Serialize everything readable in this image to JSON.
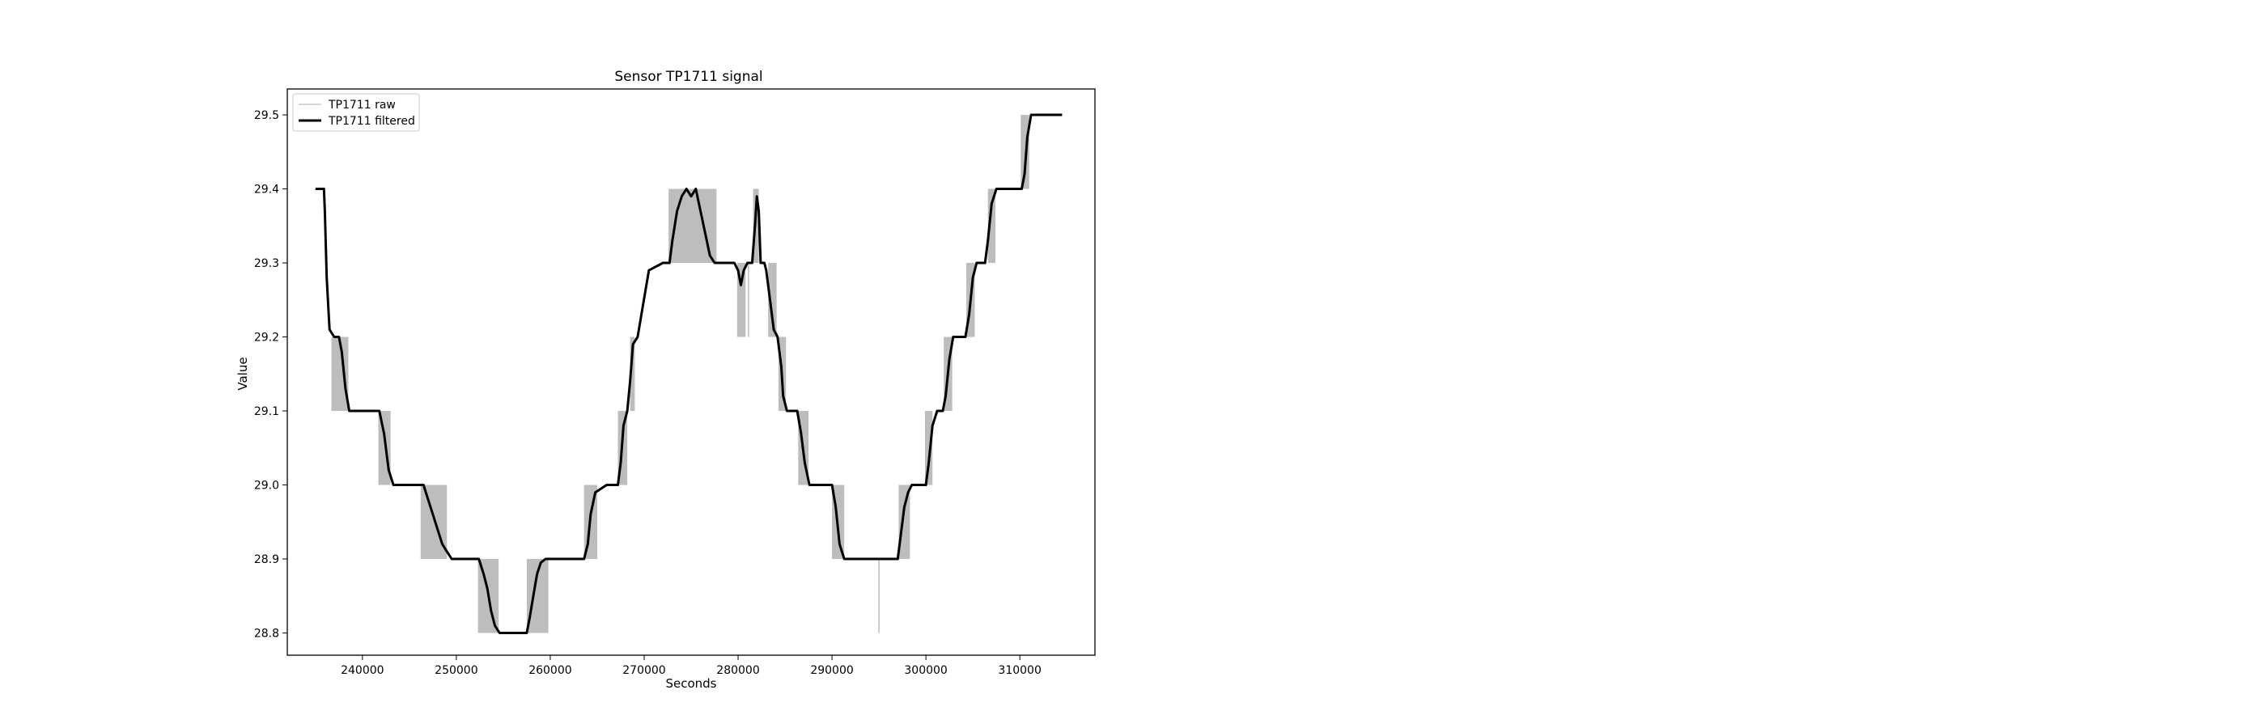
{
  "chart_data": {
    "type": "line",
    "title": "Sensor TP1711 signal",
    "xlabel": "Seconds",
    "ylabel": "Value",
    "xlim": [
      232000,
      318000
    ],
    "ylim": [
      28.77,
      29.535
    ],
    "xticks": [
      240000,
      250000,
      260000,
      270000,
      280000,
      290000,
      300000,
      310000
    ],
    "xtick_labels": [
      "240000",
      "250000",
      "260000",
      "270000",
      "280000",
      "290000",
      "300000",
      "310000"
    ],
    "yticks": [
      28.8,
      28.9,
      29.0,
      29.1,
      29.2,
      29.3,
      29.4,
      29.5
    ],
    "ytick_labels": [
      "28.8",
      "28.9",
      "29.0",
      "29.1",
      "29.2",
      "29.3",
      "29.4",
      "29.5"
    ],
    "grid": false,
    "legend_position": "top-left",
    "series": [
      {
        "name": "TP1711 raw",
        "color": "#bdbdbd",
        "style": "thin",
        "bands": [
          {
            "x0": 236700,
            "x1": 238500,
            "lo": 29.1,
            "hi": 29.2
          },
          {
            "x0": 241700,
            "x1": 243000,
            "lo": 29.0,
            "hi": 29.1
          },
          {
            "x0": 246200,
            "x1": 249000,
            "lo": 28.9,
            "hi": 29.0
          },
          {
            "x0": 252300,
            "x1": 254500,
            "lo": 28.8,
            "hi": 28.9
          },
          {
            "x0": 257500,
            "x1": 259800,
            "lo": 28.8,
            "hi": 28.9
          },
          {
            "x0": 263600,
            "x1": 265000,
            "lo": 28.9,
            "hi": 29.0
          },
          {
            "x0": 267200,
            "x1": 268200,
            "lo": 29.0,
            "hi": 29.1
          },
          {
            "x0": 268500,
            "x1": 269000,
            "lo": 29.1,
            "hi": 29.2
          },
          {
            "x0": 272600,
            "x1": 277700,
            "lo": 29.3,
            "hi": 29.4
          },
          {
            "x0": 279900,
            "x1": 280800,
            "lo": 29.2,
            "hi": 29.3
          },
          {
            "x0": 281600,
            "x1": 282200,
            "lo": 29.3,
            "hi": 29.4
          },
          {
            "x0": 283200,
            "x1": 284100,
            "lo": 29.2,
            "hi": 29.3
          },
          {
            "x0": 284300,
            "x1": 285100,
            "lo": 29.1,
            "hi": 29.2
          },
          {
            "x0": 286400,
            "x1": 287500,
            "lo": 29.0,
            "hi": 29.1
          },
          {
            "x0": 290000,
            "x1": 291300,
            "lo": 28.9,
            "hi": 29.0
          },
          {
            "x0": 297100,
            "x1": 298300,
            "lo": 28.9,
            "hi": 29.0
          },
          {
            "x0": 299900,
            "x1": 300700,
            "lo": 29.0,
            "hi": 29.1
          },
          {
            "x0": 301900,
            "x1": 302800,
            "lo": 29.1,
            "hi": 29.2
          },
          {
            "x0": 304300,
            "x1": 305200,
            "lo": 29.2,
            "hi": 29.3
          },
          {
            "x0": 306600,
            "x1": 307400,
            "lo": 29.3,
            "hi": 29.4
          },
          {
            "x0": 310100,
            "x1": 311000,
            "lo": 29.4,
            "hi": 29.5
          }
        ],
        "spikes": [
          {
            "x": 281100,
            "lo": 29.2,
            "hi": 29.3
          },
          {
            "x": 295000,
            "lo": 28.8,
            "hi": 28.9
          }
        ]
      },
      {
        "name": "TP1711 filtered",
        "color": "#000000",
        "style": "thick",
        "x": [
          235000,
          235900,
          236000,
          236200,
          236500,
          237000,
          237500,
          237800,
          238200,
          238600,
          239000,
          240000,
          241000,
          241800,
          242300,
          242800,
          243300,
          244500,
          245500,
          246500,
          247000,
          247500,
          248000,
          248500,
          249000,
          249500,
          250500,
          251500,
          252400,
          252900,
          253300,
          253700,
          254100,
          254600,
          255500,
          256500,
          257500,
          257800,
          258200,
          258600,
          259000,
          259500,
          260500,
          261500,
          262500,
          263600,
          264000,
          264300,
          264800,
          266000,
          267200,
          267500,
          267800,
          268200,
          268500,
          268800,
          269300,
          270500,
          272000,
          272700,
          273000,
          273500,
          274000,
          274500,
          275000,
          275500,
          276000,
          276500,
          277000,
          277500,
          278000,
          279000,
          279600,
          280000,
          280300,
          280600,
          281000,
          281500,
          281800,
          282000,
          282200,
          282400,
          282800,
          283000,
          283400,
          283800,
          284200,
          284600,
          284800,
          285200,
          285600,
          286300,
          286700,
          287100,
          287600,
          288500,
          289500,
          290000,
          290400,
          290800,
          291300,
          292000,
          294000,
          296000,
          297000,
          297300,
          297700,
          298100,
          298500,
          299500,
          300000,
          300300,
          300700,
          301200,
          301800,
          302100,
          302500,
          302900,
          303300,
          303700,
          304200,
          304600,
          305000,
          305400,
          305800,
          306300,
          306600,
          307000,
          307500,
          308500,
          309500,
          310200,
          310500,
          310800,
          311200,
          311600,
          312500,
          313500,
          314500
        ],
        "values": [
          29.4,
          29.4,
          29.37,
          29.28,
          29.21,
          29.2,
          29.2,
          29.18,
          29.13,
          29.1,
          29.1,
          29.1,
          29.1,
          29.1,
          29.07,
          29.02,
          29.0,
          29.0,
          29.0,
          29.0,
          28.98,
          28.96,
          28.94,
          28.92,
          28.91,
          28.9,
          28.9,
          28.9,
          28.9,
          28.88,
          28.86,
          28.83,
          28.81,
          28.8,
          28.8,
          28.8,
          28.8,
          28.82,
          28.85,
          28.88,
          28.895,
          28.9,
          28.9,
          28.9,
          28.9,
          28.9,
          28.92,
          28.96,
          28.99,
          29.0,
          29.0,
          29.03,
          29.08,
          29.1,
          29.14,
          29.19,
          29.2,
          29.29,
          29.3,
          29.3,
          29.33,
          29.37,
          29.39,
          29.4,
          29.39,
          29.4,
          29.37,
          29.34,
          29.31,
          29.3,
          29.3,
          29.3,
          29.3,
          29.29,
          29.27,
          29.29,
          29.3,
          29.3,
          29.35,
          29.39,
          29.37,
          29.3,
          29.3,
          29.29,
          29.25,
          29.21,
          29.2,
          29.16,
          29.12,
          29.1,
          29.1,
          29.1,
          29.07,
          29.03,
          29.0,
          29.0,
          29.0,
          29.0,
          28.97,
          28.92,
          28.9,
          28.9,
          28.9,
          28.9,
          28.9,
          28.93,
          28.97,
          28.99,
          29.0,
          29.0,
          29.0,
          29.03,
          29.08,
          29.1,
          29.1,
          29.12,
          29.17,
          29.2,
          29.2,
          29.2,
          29.2,
          29.23,
          29.28,
          29.3,
          29.3,
          29.3,
          29.33,
          29.38,
          29.4,
          29.4,
          29.4,
          29.4,
          29.42,
          29.47,
          29.5,
          29.5,
          29.5,
          29.5,
          29.5
        ]
      }
    ]
  }
}
